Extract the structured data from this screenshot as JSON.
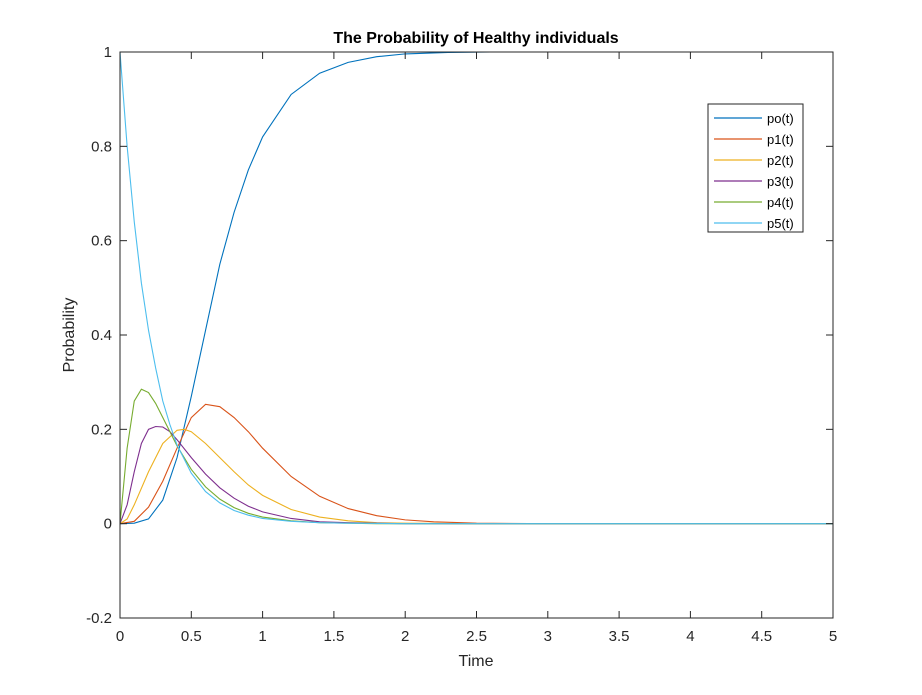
{
  "chart_data": {
    "type": "line",
    "title": "The Probability of Healthy individuals",
    "xlabel": "Time",
    "ylabel": "Probability",
    "xlim": [
      0,
      5
    ],
    "ylim": [
      -0.2,
      1
    ],
    "xticks": [
      0,
      0.5,
      1,
      1.5,
      2,
      2.5,
      3,
      3.5,
      4,
      4.5,
      5
    ],
    "xtick_labels": [
      "0",
      "0.5",
      "1",
      "1.5",
      "2",
      "2.5",
      "3",
      "3.5",
      "4",
      "4.5",
      "5"
    ],
    "yticks": [
      -0.2,
      0,
      0.2,
      0.4,
      0.6,
      0.8,
      1
    ],
    "ytick_labels": [
      "-0.2",
      "0",
      "0.2",
      "0.4",
      "0.6",
      "0.8",
      "1"
    ],
    "grid": false,
    "legend_position": "top-right",
    "series": [
      {
        "name": "po(t)",
        "color": "#0072BD",
        "points": [
          [
            0,
            0
          ],
          [
            0.1,
            0.001
          ],
          [
            0.2,
            0.01
          ],
          [
            0.3,
            0.05
          ],
          [
            0.4,
            0.14
          ],
          [
            0.5,
            0.27
          ],
          [
            0.6,
            0.41
          ],
          [
            0.7,
            0.55
          ],
          [
            0.8,
            0.66
          ],
          [
            0.9,
            0.75
          ],
          [
            1.0,
            0.82
          ],
          [
            1.2,
            0.91
          ],
          [
            1.4,
            0.955
          ],
          [
            1.6,
            0.978
          ],
          [
            1.8,
            0.99
          ],
          [
            2.0,
            0.996
          ],
          [
            2.3,
            0.999
          ],
          [
            2.6,
            1.0
          ],
          [
            3.0,
            1.0
          ],
          [
            3.5,
            1.0
          ],
          [
            4.0,
            1.0
          ],
          [
            4.5,
            1.0
          ],
          [
            5.0,
            1.0
          ]
        ]
      },
      {
        "name": "p1(t)",
        "color": "#D95319",
        "points": [
          [
            0,
            0
          ],
          [
            0.1,
            0.005
          ],
          [
            0.2,
            0.035
          ],
          [
            0.3,
            0.09
          ],
          [
            0.4,
            0.16
          ],
          [
            0.5,
            0.225
          ],
          [
            0.6,
            0.253
          ],
          [
            0.7,
            0.248
          ],
          [
            0.8,
            0.225
          ],
          [
            0.9,
            0.195
          ],
          [
            1.0,
            0.16
          ],
          [
            1.2,
            0.1
          ],
          [
            1.4,
            0.058
          ],
          [
            1.6,
            0.032
          ],
          [
            1.8,
            0.017
          ],
          [
            2.0,
            0.008
          ],
          [
            2.2,
            0.004
          ],
          [
            2.5,
            0.001
          ],
          [
            3.0,
            0
          ],
          [
            3.5,
            0
          ],
          [
            4.0,
            0
          ],
          [
            4.5,
            0
          ],
          [
            5.0,
            0
          ]
        ]
      },
      {
        "name": "p2(t)",
        "color": "#EDB120",
        "points": [
          [
            0,
            0
          ],
          [
            0.05,
            0.01
          ],
          [
            0.1,
            0.04
          ],
          [
            0.2,
            0.11
          ],
          [
            0.3,
            0.17
          ],
          [
            0.4,
            0.198
          ],
          [
            0.45,
            0.2
          ],
          [
            0.5,
            0.195
          ],
          [
            0.6,
            0.17
          ],
          [
            0.7,
            0.14
          ],
          [
            0.8,
            0.11
          ],
          [
            0.9,
            0.082
          ],
          [
            1.0,
            0.06
          ],
          [
            1.2,
            0.03
          ],
          [
            1.4,
            0.014
          ],
          [
            1.6,
            0.006
          ],
          [
            1.8,
            0.002
          ],
          [
            2.0,
            0.001
          ],
          [
            2.5,
            0
          ],
          [
            3.0,
            0
          ],
          [
            4.0,
            0
          ],
          [
            5.0,
            0
          ]
        ]
      },
      {
        "name": "p3(t)",
        "color": "#7E2F8E",
        "points": [
          [
            0,
            0
          ],
          [
            0.05,
            0.04
          ],
          [
            0.1,
            0.11
          ],
          [
            0.15,
            0.17
          ],
          [
            0.2,
            0.2
          ],
          [
            0.25,
            0.206
          ],
          [
            0.3,
            0.205
          ],
          [
            0.35,
            0.195
          ],
          [
            0.4,
            0.178
          ],
          [
            0.5,
            0.14
          ],
          [
            0.6,
            0.105
          ],
          [
            0.7,
            0.076
          ],
          [
            0.8,
            0.054
          ],
          [
            0.9,
            0.037
          ],
          [
            1.0,
            0.025
          ],
          [
            1.2,
            0.011
          ],
          [
            1.4,
            0.004
          ],
          [
            1.6,
            0.002
          ],
          [
            1.8,
            0.001
          ],
          [
            2.0,
            0
          ],
          [
            3.0,
            0
          ],
          [
            4.0,
            0
          ],
          [
            5.0,
            0
          ]
        ]
      },
      {
        "name": "p4(t)",
        "color": "#77AC30",
        "points": [
          [
            0,
            0
          ],
          [
            0.05,
            0.16
          ],
          [
            0.1,
            0.26
          ],
          [
            0.15,
            0.285
          ],
          [
            0.2,
            0.278
          ],
          [
            0.25,
            0.255
          ],
          [
            0.3,
            0.225
          ],
          [
            0.4,
            0.165
          ],
          [
            0.5,
            0.115
          ],
          [
            0.6,
            0.078
          ],
          [
            0.7,
            0.052
          ],
          [
            0.8,
            0.034
          ],
          [
            0.9,
            0.022
          ],
          [
            1.0,
            0.014
          ],
          [
            1.2,
            0.006
          ],
          [
            1.4,
            0.002
          ],
          [
            1.6,
            0.001
          ],
          [
            1.8,
            0
          ],
          [
            2.0,
            0
          ],
          [
            3.0,
            0
          ],
          [
            4.0,
            0
          ],
          [
            5.0,
            0
          ]
        ]
      },
      {
        "name": "p5(t)",
        "color": "#4DBEEE",
        "points": [
          [
            0,
            1
          ],
          [
            0.05,
            0.8
          ],
          [
            0.1,
            0.64
          ],
          [
            0.15,
            0.51
          ],
          [
            0.2,
            0.41
          ],
          [
            0.25,
            0.33
          ],
          [
            0.3,
            0.26
          ],
          [
            0.35,
            0.21
          ],
          [
            0.4,
            0.167
          ],
          [
            0.5,
            0.107
          ],
          [
            0.6,
            0.068
          ],
          [
            0.7,
            0.044
          ],
          [
            0.8,
            0.028
          ],
          [
            0.9,
            0.018
          ],
          [
            1.0,
            0.011
          ],
          [
            1.2,
            0.005
          ],
          [
            1.4,
            0.002
          ],
          [
            1.6,
            0.001
          ],
          [
            2.0,
            0
          ],
          [
            3.0,
            0
          ],
          [
            4.0,
            0
          ],
          [
            5.0,
            0
          ]
        ]
      }
    ]
  }
}
